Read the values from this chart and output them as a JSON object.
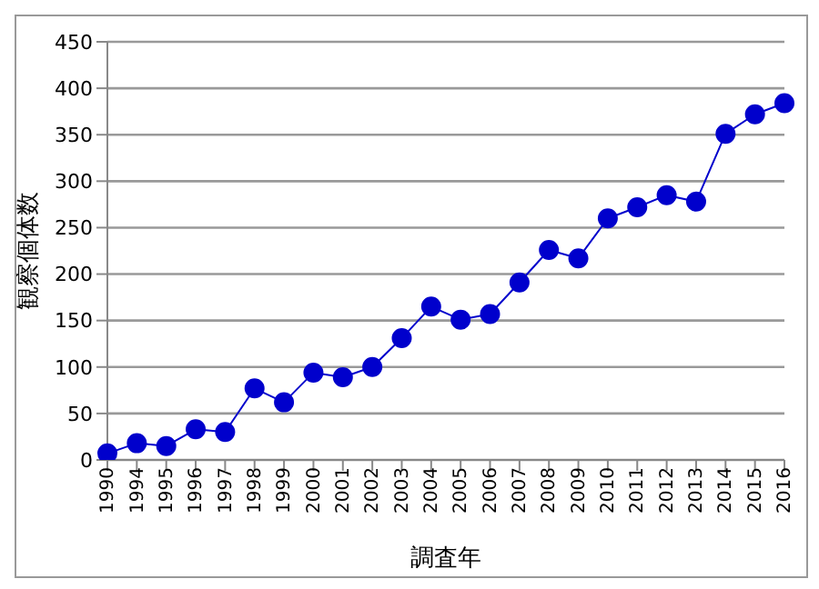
{
  "chart_data": {
    "type": "line",
    "xlabel": "調査年",
    "ylabel": "観察個体数",
    "categories": [
      "1990",
      "1994",
      "1995",
      "1996",
      "1997",
      "1998",
      "1999",
      "2000",
      "2001",
      "2002",
      "2003",
      "2004",
      "2005",
      "2006",
      "2007",
      "2008",
      "2009",
      "2010",
      "2011",
      "2012",
      "2013",
      "2014",
      "2015",
      "2016"
    ],
    "series": [
      {
        "color": "#0000cc",
        "values": [
          7,
          18,
          15,
          33,
          30,
          77,
          62,
          94,
          89,
          100,
          131,
          165,
          151,
          157,
          191,
          226,
          217,
          260,
          272,
          285,
          278,
          351,
          372,
          384
        ]
      }
    ],
    "ylim": [
      0,
      450
    ],
    "yticks": [
      0,
      50,
      100,
      150,
      200,
      250,
      300,
      350,
      400,
      450
    ],
    "grid": "y",
    "marker": "circle",
    "line_style": "solid",
    "legend": false
  }
}
